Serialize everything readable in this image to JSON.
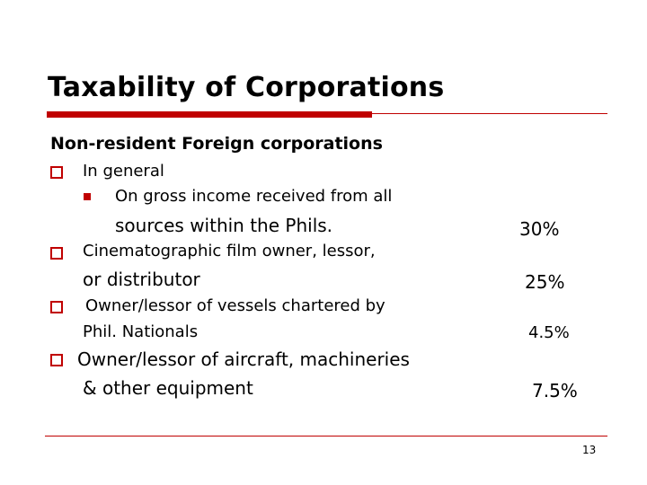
{
  "slide": {
    "title": "Taxability of Corporations",
    "subheading": "Non-resident Foreign corporations",
    "items": [
      {
        "heading": "In general",
        "sub_line1": "On gross income received from all",
        "sub_line2": "sources within the Phils.",
        "rate": "30%"
      },
      {
        "line1": "Cinematographic film owner, lessor,",
        "line2": "or distributor",
        "rate": "25%"
      },
      {
        "line1": "Owner/lessor of vessels chartered by",
        "line2": "Phil. Nationals",
        "rate": "4.5%"
      },
      {
        "line1": "Owner/lessor of aircraft, machineries",
        "line2": "& other equipment",
        "rate": "7.5%"
      }
    ],
    "page_number": "13"
  },
  "colors": {
    "accent": "#c00000",
    "text": "#000000",
    "background": "#ffffff"
  }
}
